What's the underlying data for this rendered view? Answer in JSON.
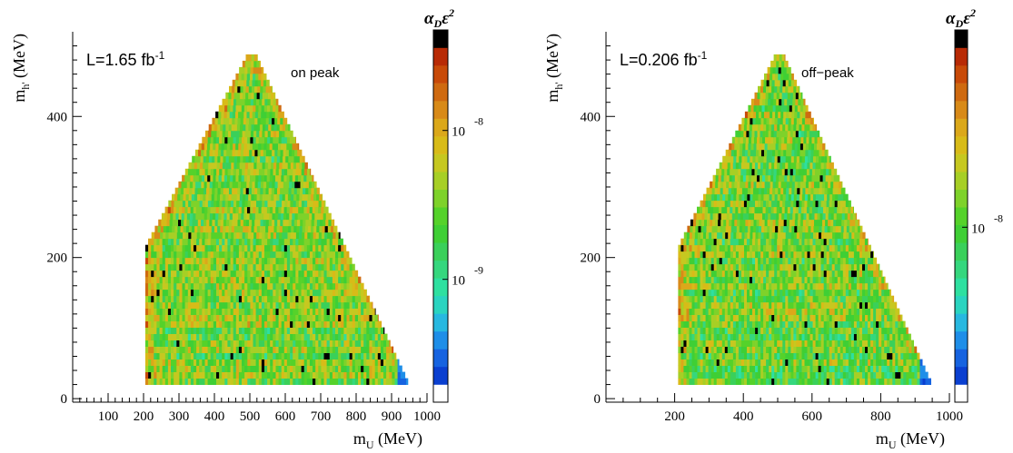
{
  "chart_data": [
    {
      "type": "heatmap",
      "title": "",
      "luminosity_label": "L=1.65 fb",
      "luminosity_exponent": "-1",
      "annotation": "on peak",
      "xlabel": "m",
      "xlabel_sub": "U",
      "xlabel_unit": " (MeV)",
      "ylabel": "m",
      "ylabel_sub": "h'",
      "ylabel_unit": " (MeV)",
      "xlim": [
        0,
        1000
      ],
      "ylim": [
        -5,
        520
      ],
      "x_ticks": [
        100,
        200,
        300,
        400,
        500,
        600,
        700,
        800,
        900,
        1000
      ],
      "y_ticks": [
        0,
        200,
        400
      ],
      "colorbar_title": "α",
      "colorbar_title_sub": "D",
      "colorbar_title_eps": "ε",
      "colorbar_title_sup": "2",
      "colorbar_labels": [
        {
          "base": "10",
          "exp": "-8",
          "frac": 0.73
        },
        {
          "base": "10",
          "exp": "-9",
          "frac": 0.33
        }
      ],
      "region": {
        "x_min": 205,
        "x_max": 950,
        "y_min": 20,
        "y_max": 485,
        "apex_x": 505
      },
      "color_bias": 0.52
    },
    {
      "type": "heatmap",
      "title": "",
      "luminosity_label": "L=0.206 fb",
      "luminosity_exponent": "-1",
      "annotation": "off−peak",
      "xlabel": "m",
      "xlabel_sub": "U",
      "xlabel_unit": " (MeV)",
      "ylabel": "m",
      "ylabel_sub": "h'",
      "ylabel_unit": " (MeV)",
      "xlim": [
        0,
        1000
      ],
      "ylim": [
        -5,
        520
      ],
      "x_ticks": [
        200,
        400,
        600,
        800,
        1000
      ],
      "y_ticks": [
        0,
        200,
        400
      ],
      "colorbar_title": "α",
      "colorbar_title_sub": "D",
      "colorbar_title_eps": "ε",
      "colorbar_title_sup": "2",
      "colorbar_labels": [
        {
          "base": "10",
          "exp": "-8",
          "frac": 0.47
        }
      ],
      "region": {
        "x_min": 210,
        "x_max": 950,
        "y_min": 20,
        "y_max": 485,
        "apex_x": 505
      },
      "color_bias": 0.6
    }
  ],
  "colors": {
    "palette": [
      "#ffffff",
      "#0a3fd0",
      "#1663e0",
      "#1e8ee8",
      "#27b8e0",
      "#2ad4c0",
      "#2ee0a0",
      "#35d77e",
      "#3ad05a",
      "#3fcf35",
      "#55d22a",
      "#7ed22a",
      "#a7cf25",
      "#c6c820",
      "#d8bb18",
      "#dba81a",
      "#d88a18",
      "#cf6a10",
      "#c84a08",
      "#b82a05",
      "#000000"
    ]
  }
}
